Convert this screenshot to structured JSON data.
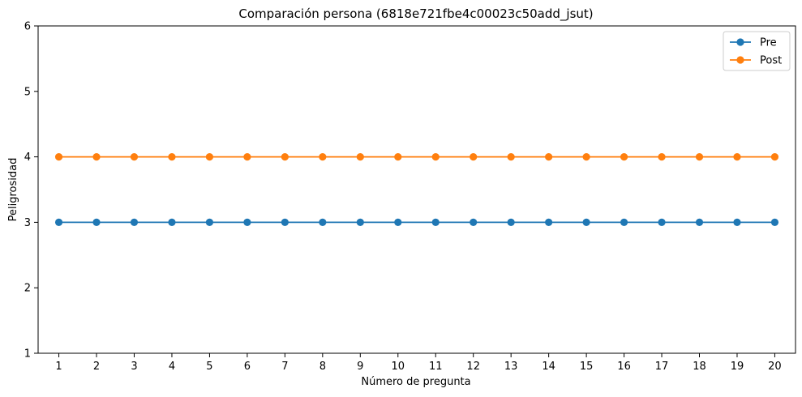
{
  "chart_data": {
    "type": "line",
    "title": "Comparación persona (6818e721fbe4c00023c50add_jsut)",
    "xlabel": "Número de pregunta",
    "ylabel": "Peligrosidad",
    "x": [
      1,
      2,
      3,
      4,
      5,
      6,
      7,
      8,
      9,
      10,
      11,
      12,
      13,
      14,
      15,
      16,
      17,
      18,
      19,
      20
    ],
    "ylim": [
      1,
      6
    ],
    "yticks": [
      1,
      2,
      3,
      4,
      5,
      6
    ],
    "grid": false,
    "legend_position": "top-right",
    "series": [
      {
        "name": "Pre",
        "color": "#1f77b4",
        "marker": "circle",
        "values": [
          3,
          3,
          3,
          3,
          3,
          3,
          3,
          3,
          3,
          3,
          3,
          3,
          3,
          3,
          3,
          3,
          3,
          3,
          3,
          3
        ]
      },
      {
        "name": "Post",
        "color": "#ff7f0e",
        "marker": "circle",
        "values": [
          4,
          4,
          4,
          4,
          4,
          4,
          4,
          4,
          4,
          4,
          4,
          4,
          4,
          4,
          4,
          4,
          4,
          4,
          4,
          4
        ]
      }
    ]
  }
}
